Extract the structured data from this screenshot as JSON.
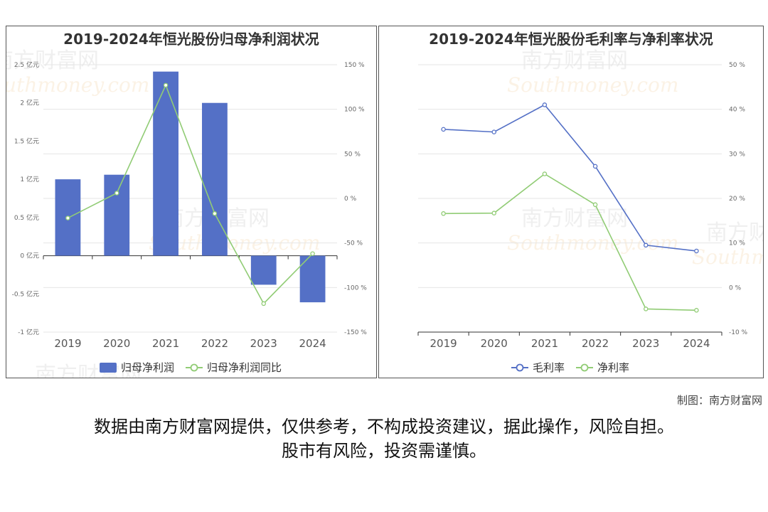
{
  "chart_data": [
    {
      "type": "bar",
      "title": "2019-2024年恒光股份归母净利润状况",
      "categories": [
        "2019",
        "2020",
        "2021",
        "2022",
        "2023",
        "2024"
      ],
      "left_axis": {
        "ticks": [
          "2.5 亿元",
          "2 亿元",
          "1.5 亿元",
          "1 亿元",
          "0.5 亿元",
          "0 亿元",
          "-0.5 亿元",
          "-1 亿元"
        ],
        "ylim": [
          -1,
          2.5
        ]
      },
      "right_axis": {
        "ticks": [
          "150 %",
          "100 %",
          "50 %",
          "0 %",
          "-50 %",
          "-100 %",
          "-150 %"
        ],
        "ylim": [
          -150,
          150
        ]
      },
      "series": [
        {
          "name": "归母净利润",
          "type": "bar",
          "axis": "left",
          "color": "#5470c6",
          "values": [
            1.0,
            1.06,
            2.41,
            2.0,
            -0.38,
            -0.61
          ]
        },
        {
          "name": "归母净利润同比",
          "type": "line",
          "axis": "right",
          "color": "#91cc75",
          "values": [
            -22,
            6,
            127,
            -17,
            -118,
            -62
          ]
        }
      ],
      "grid": true,
      "legend": "bottom"
    },
    {
      "type": "line",
      "title": "2019-2024年恒光股份毛利率与净利率状况",
      "categories": [
        "2019",
        "2020",
        "2021",
        "2022",
        "2023",
        "2024"
      ],
      "right_axis": {
        "ticks": [
          "50 %",
          "40 %",
          "30 %",
          "20 %",
          "10 %",
          "0 %",
          "-10 %"
        ],
        "ylim": [
          -10,
          50
        ]
      },
      "series": [
        {
          "name": "毛利率",
          "type": "line",
          "axis": "right",
          "color": "#5470c6",
          "values": [
            35.5,
            34.9,
            41.0,
            27.2,
            9.5,
            8.2
          ]
        },
        {
          "name": "净利率",
          "type": "line",
          "axis": "right",
          "color": "#91cc75",
          "values": [
            16.6,
            16.7,
            25.5,
            18.6,
            -4.8,
            -5.1
          ]
        }
      ],
      "grid": true,
      "legend": "bottom"
    }
  ],
  "credit": "制图：南方财富网",
  "disclaimer_line1": "数据由南方财富网提供，仅供参考，不构成投资建议，据此操作，风险自担。",
  "disclaimer_line2": "股市有风险，投资需谨慎。",
  "watermark": {
    "cn": "南方财富网",
    "en": "Southmoney.com"
  },
  "colors": {
    "blue": "#5470c6",
    "green": "#91cc75"
  }
}
